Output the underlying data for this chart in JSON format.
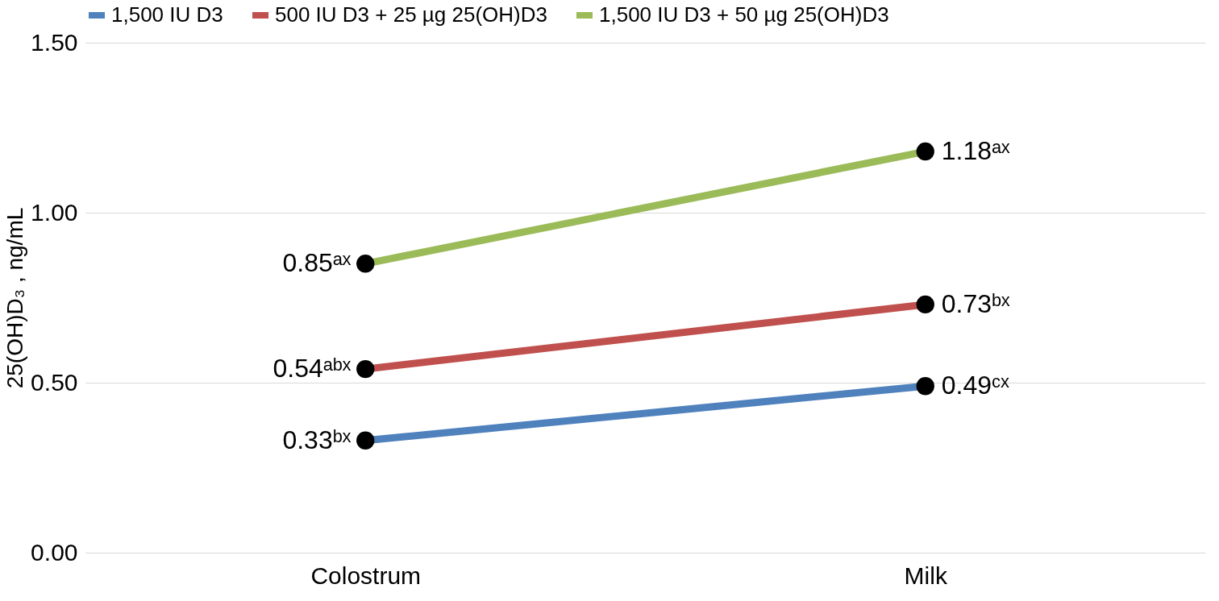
{
  "chart_data": {
    "type": "line",
    "ylabel": "25(OH)D₃ , ng/mL",
    "categories": [
      "Colostrum",
      "Milk"
    ],
    "series": [
      {
        "name": "1,500 IU D3",
        "color": "#4f81bd",
        "values": [
          0.33,
          0.49
        ],
        "value_labels": [
          "0.33ᵇˣ",
          "0.49ᶜˣ"
        ]
      },
      {
        "name": "500 IU D3 + 25 µg 25(OH)D3",
        "color": "#c0504d",
        "values": [
          0.54,
          0.73
        ],
        "value_labels": [
          "0.54ᵃᵇˣ",
          "0.73ᵇˣ"
        ]
      },
      {
        "name": "1,500 IU D3 + 50 µg 25(OH)D3",
        "color": "#9bbb59",
        "values": [
          0.85,
          1.18
        ],
        "value_labels": [
          "0.85ᵃˣ",
          "1.18ᵃˣ"
        ]
      }
    ],
    "ylim": [
      0,
      1.5
    ],
    "yticks": [
      {
        "value": 0,
        "label": "0.00"
      },
      {
        "value": 0.5,
        "label": "0.50"
      },
      {
        "value": 1,
        "label": "1.00"
      },
      {
        "value": 1.5,
        "label": "1.50"
      }
    ],
    "grid": "y",
    "legend": "top",
    "marker": "circle",
    "line_style": "solid"
  }
}
